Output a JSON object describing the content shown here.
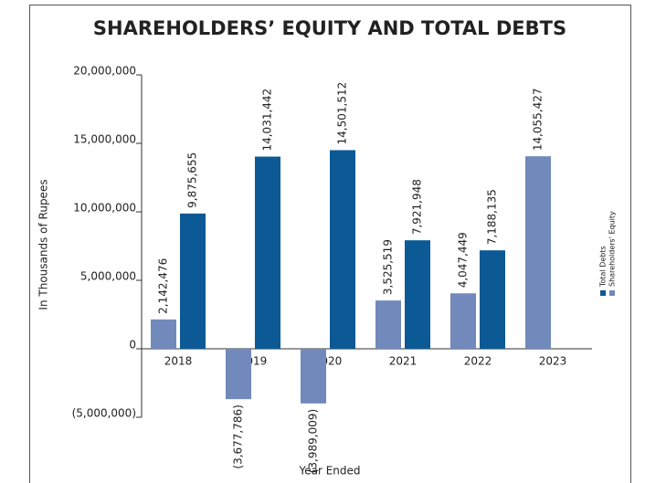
{
  "chart_data": {
    "type": "bar",
    "title": "SHAREHOLDERS’ EQUITY AND TOTAL DEBTS",
    "xlabel": "Year Ended",
    "ylabel": "In Thousands  of Rupees",
    "categories": [
      "2018",
      "2019",
      "2020",
      "2021",
      "2022",
      "2023"
    ],
    "series": [
      {
        "name": "Shareholders' Equity",
        "color": "#7189bb",
        "values": [
          2142476,
          -3677786,
          -3989009,
          3525519,
          4047449,
          14055427
        ],
        "value_labels": [
          "2,142,476",
          "(3,677,786)",
          "(3,989,009)",
          "3,525,519",
          "4,047,449",
          "14,055,427"
        ]
      },
      {
        "name": "Total Debts",
        "color": "#0b5995",
        "values": [
          9875655,
          14031442,
          14501512,
          7921948,
          7188135,
          null
        ],
        "value_labels": [
          "9,875,655",
          "14,031,442",
          "14,501,512",
          "7,921,948",
          "7,188,135",
          null
        ]
      }
    ],
    "ylim": [
      -5000000,
      20000000
    ],
    "yticks": [
      {
        "value": -5000000,
        "label": "(5,000,000)"
      },
      0,
      {
        "value": 5000000,
        "label": "5,000,000"
      },
      {
        "value": 10000000,
        "label": "10,000,000"
      },
      {
        "value": 15000000,
        "label": "15,000,000"
      },
      {
        "value": 20000000,
        "label": "20,000,000"
      }
    ],
    "grid": false,
    "legend": "right"
  }
}
